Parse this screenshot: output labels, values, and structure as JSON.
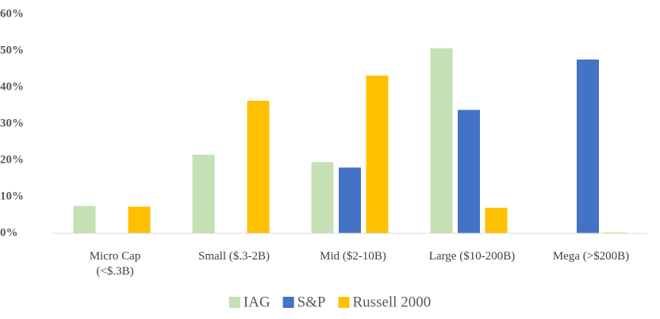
{
  "chart_data": {
    "type": "bar",
    "categories": [
      "Micro Cap (<$.3B)",
      "Small ($.3-2B)",
      "Mid ($2-10B)",
      "Large ($10-200B)",
      "Mega (>$200B)"
    ],
    "series": [
      {
        "name": "IAG",
        "color": "#c5e0b4",
        "values": [
          7.5,
          21.5,
          19.5,
          50.7,
          0
        ]
      },
      {
        "name": "S&P",
        "color": "#4472c4",
        "values": [
          0,
          0,
          18,
          33.8,
          47.6
        ]
      },
      {
        "name": "Russell 2000",
        "color": "#ffc000",
        "values": [
          7.3,
          36.3,
          43.2,
          7,
          0.2
        ]
      }
    ],
    "ylim": [
      0,
      60
    ],
    "yticks": [
      {
        "value": 0,
        "label": "0%"
      },
      {
        "value": 10,
        "label": "10%"
      },
      {
        "value": 20,
        "label": "20%"
      },
      {
        "value": 30,
        "label": "30%"
      },
      {
        "value": 40,
        "label": "40%"
      },
      {
        "value": 50,
        "label": "50%"
      },
      {
        "value": 60,
        "label": "60%"
      }
    ],
    "grid": false,
    "legend": "bottom"
  }
}
